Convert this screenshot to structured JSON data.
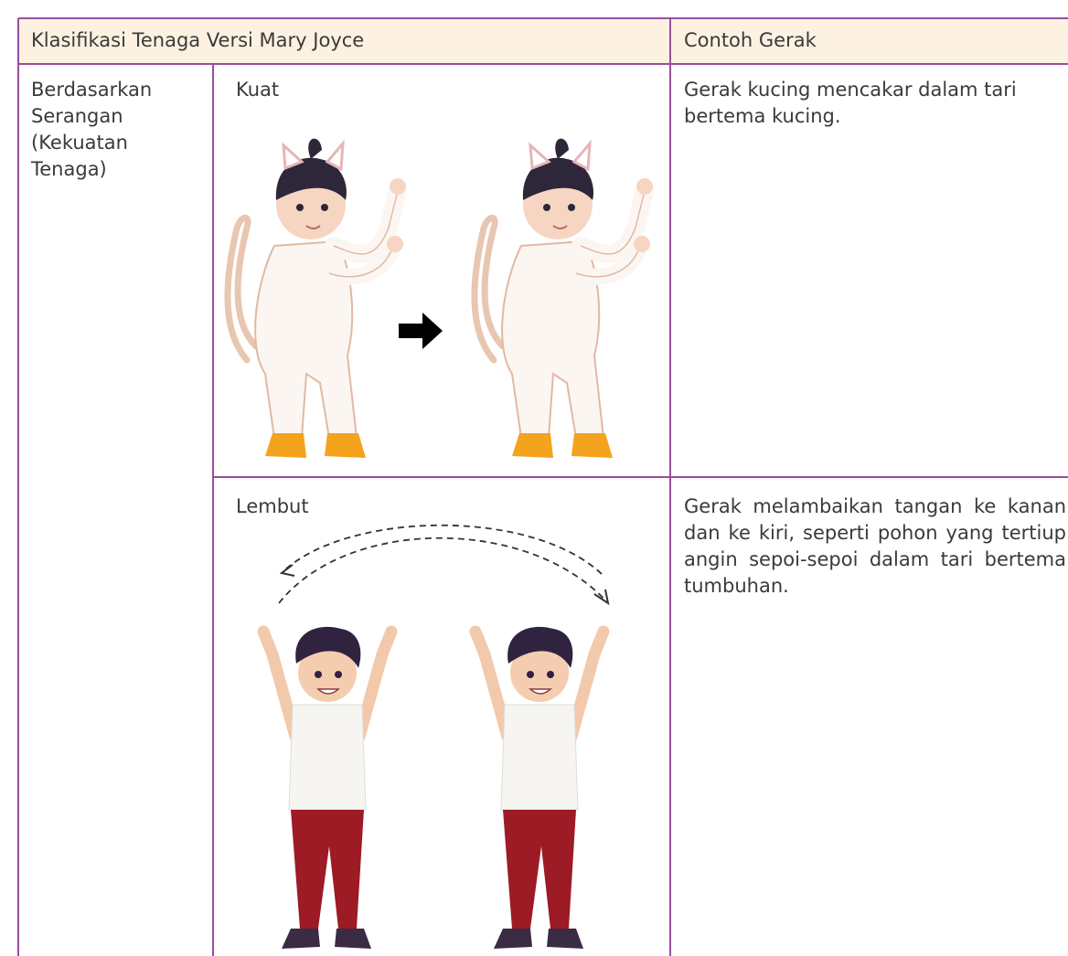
{
  "table": {
    "header": [
      "Klasifikasi Tenaga Versi Mary Joyce",
      "Contoh Gerak"
    ],
    "category": "Berdasarkan Serangan (Kekuatan Tenaga)",
    "rows": [
      {
        "label": "Kuat",
        "example": "Gerak kucing mencakar dalam tari bertema kucing."
      },
      {
        "label": "Lembut",
        "example": "Gerak melambaikan tangan ke kanan dan ke kiri, seperti pohon yang tertiup angin sepoi-sepoi dalam tari bertema tumbuhan."
      }
    ]
  }
}
